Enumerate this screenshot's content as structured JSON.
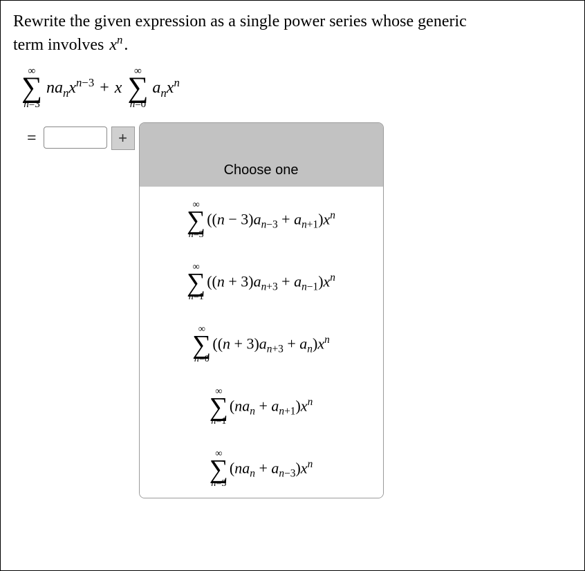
{
  "prompt": {
    "line1": "Rewrite the given expression as a single power series whose generic",
    "line2_pre": "term involves ",
    "line2_math": "x<sup>n</sup>",
    "line2_post": "."
  },
  "expression": {
    "sum1": {
      "top": "∞",
      "bottom_lhs": "n",
      "bottom_eq": "=",
      "bottom_rhs": "3"
    },
    "term1_html": "na<sub>n</sub>x<sup>n<span class=\"upright\">−3</span></sup>",
    "plus": "+",
    "mult": "x",
    "sum2": {
      "top": "∞",
      "bottom_lhs": "n",
      "bottom_eq": "=",
      "bottom_rhs": "0"
    },
    "term2_html": "a<sub>n</sub>x<sup>n</sup>"
  },
  "answer": {
    "equals": "=",
    "input_value": "",
    "plus_label": "+"
  },
  "dropdown": {
    "header": "Choose one",
    "options": [
      {
        "top": "∞",
        "bottom_lhs": "n",
        "bottom_rhs": "3",
        "body_html": "<span class=\"upright\">((</span>n <span class=\"upright\">− 3)</span>a<sub>n<span class=\"upright\">−3</span></sub> <span class=\"upright\">+</span> a<sub>n<span class=\"upright\">+1</span></sub><span class=\"upright\">)</span>x<sup>n</sup>"
      },
      {
        "top": "∞",
        "bottom_lhs": "n",
        "bottom_rhs": "1",
        "body_html": "<span class=\"upright\">((</span>n <span class=\"upright\">+ 3)</span>a<sub>n<span class=\"upright\">+3</span></sub> <span class=\"upright\">+</span> a<sub>n<span class=\"upright\">−1</span></sub><span class=\"upright\">)</span>x<sup>n</sup>"
      },
      {
        "top": "∞",
        "bottom_lhs": "n",
        "bottom_rhs": "0",
        "body_html": "<span class=\"upright\">((</span>n <span class=\"upright\">+ 3)</span>a<sub>n<span class=\"upright\">+3</span></sub> <span class=\"upright\">+</span> a<sub>n</sub><span class=\"upright\">)</span>x<sup>n</sup>"
      },
      {
        "top": "∞",
        "bottom_lhs": "n",
        "bottom_rhs": "1",
        "body_html": "<span class=\"upright\">(</span>na<sub>n</sub> <span class=\"upright\">+</span> a<sub>n<span class=\"upright\">+1</span></sub><span class=\"upright\">)</span>x<sup>n</sup>"
      },
      {
        "top": "∞",
        "bottom_lhs": "n",
        "bottom_rhs": "3",
        "body_html": "<span class=\"upright\">(</span>na<sub>n</sub> <span class=\"upright\">+</span> a<sub>n<span class=\"upright\">−3</span></sub><span class=\"upright\">)</span>x<sup>n</sup>"
      }
    ]
  },
  "colors": {
    "border": "#000000",
    "dropdown_border": "#9a9a9a",
    "dropdown_header_bg": "#c2c2c2",
    "plus_bg": "#d0d0d0",
    "text": "#000000",
    "bg": "#ffffff"
  }
}
